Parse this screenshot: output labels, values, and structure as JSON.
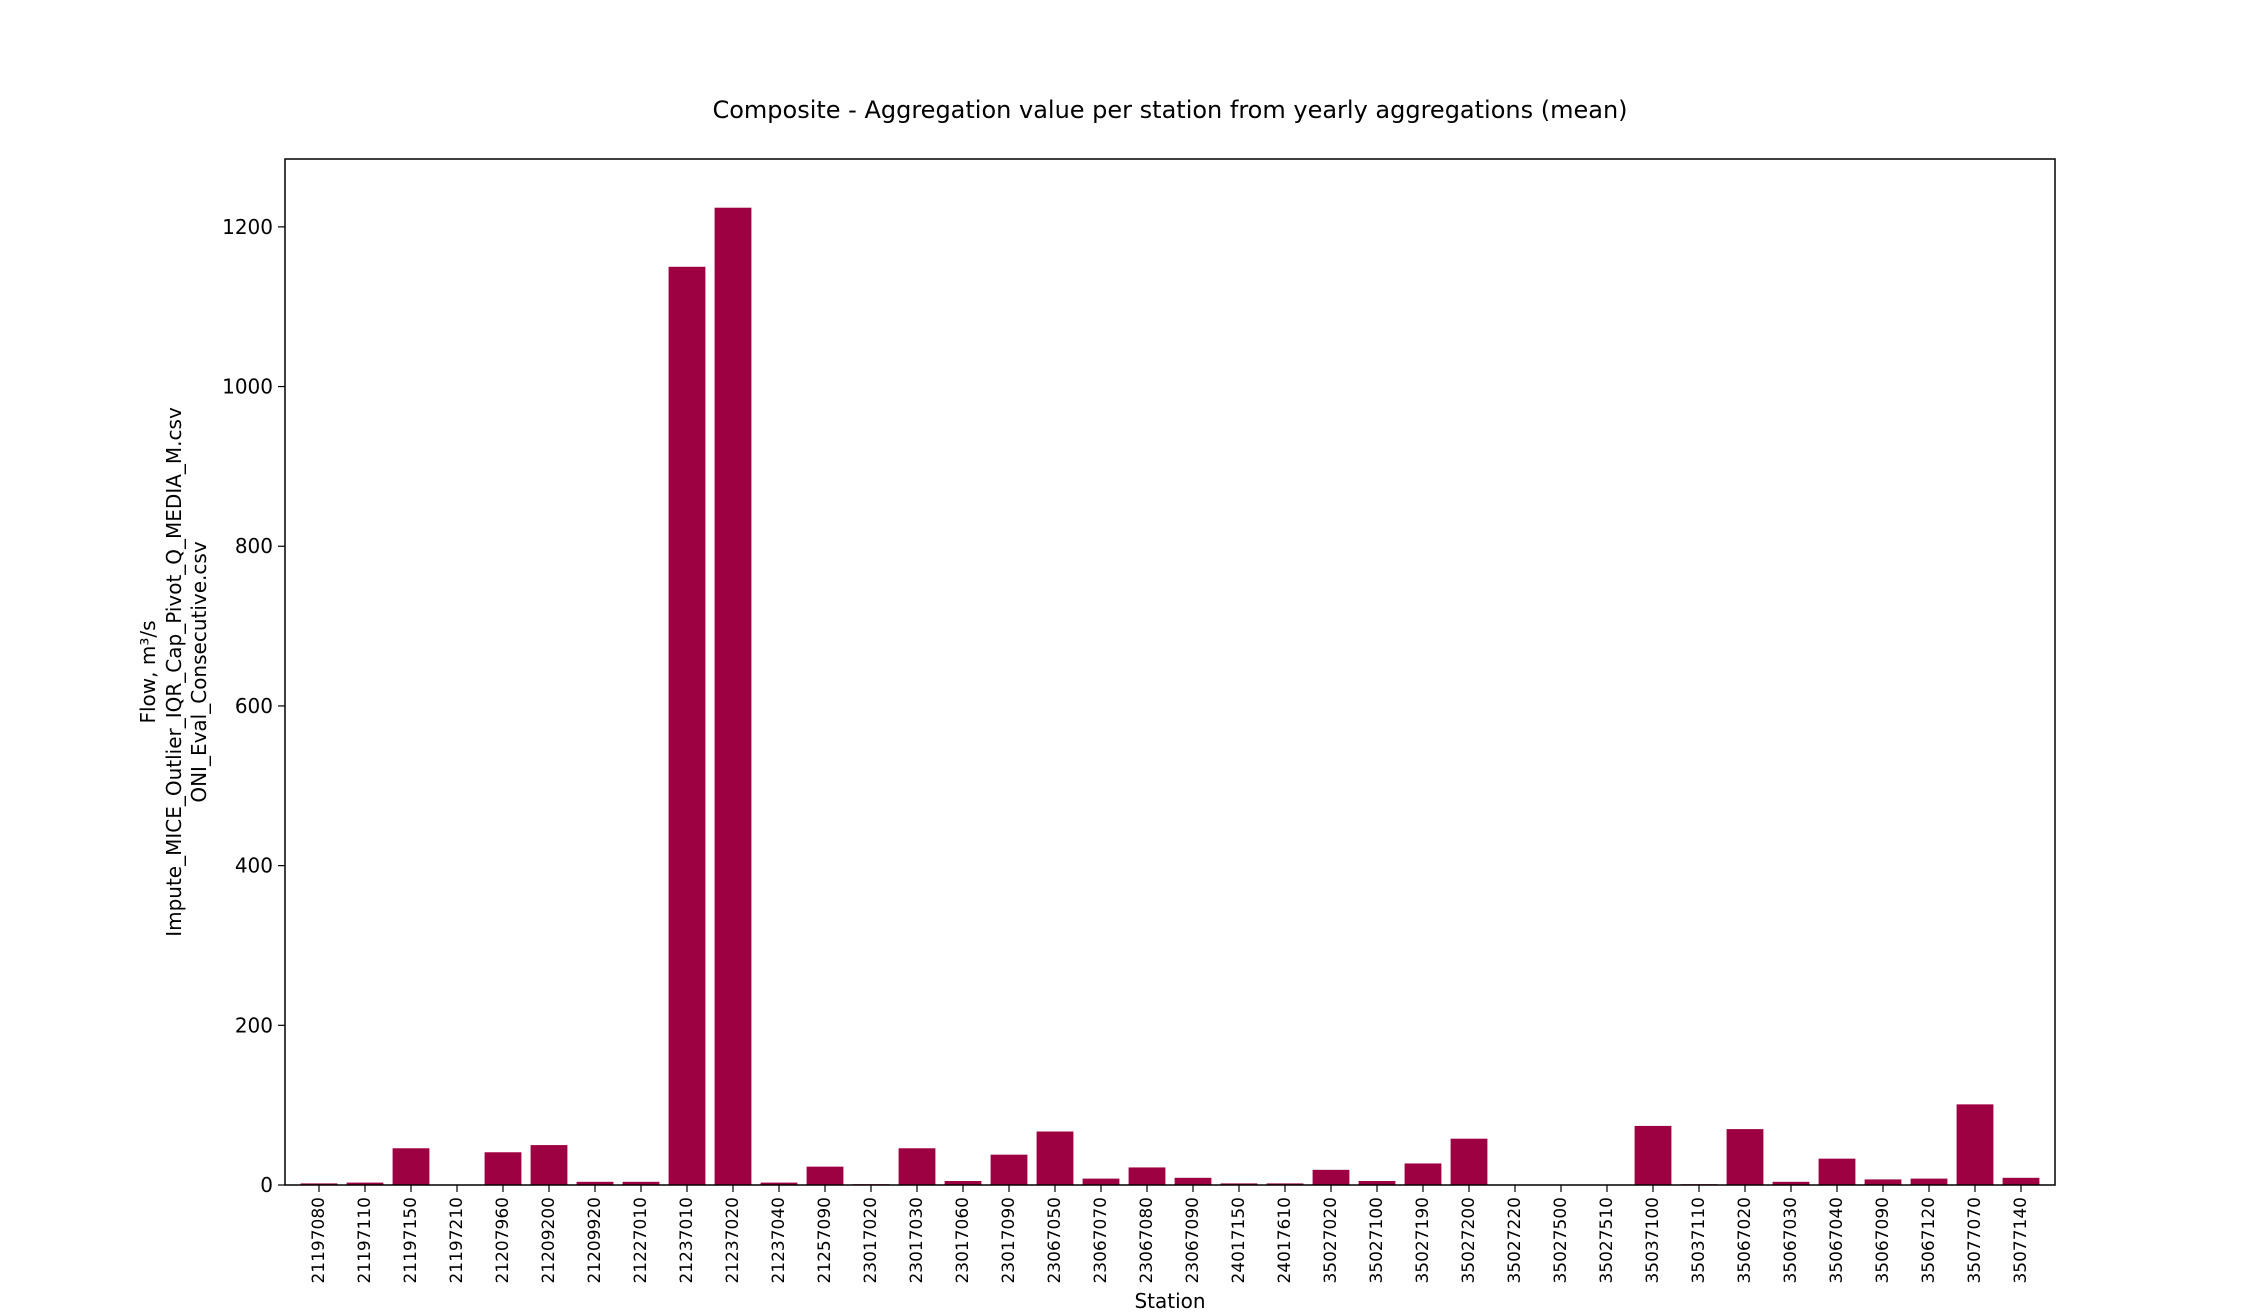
{
  "chart_data": {
    "type": "bar",
    "title": "Composite - Aggregation value per station from yearly aggregations (mean)",
    "xlabel": "Station",
    "ylabel_lines": [
      "Flow, m³/s",
      "Impute_MICE_Outlier_IQR_Cap_Pivot_Q_MEDIA_M.csv",
      "ONI_Eval_Consecutive.csv"
    ],
    "ylim": [
      0,
      1285
    ],
    "yticks": [
      0,
      200,
      400,
      600,
      800,
      1000,
      1200
    ],
    "bar_color": "#9e0142",
    "grid": false,
    "categories": [
      "21197080",
      "21197110",
      "21197150",
      "21197210",
      "21207960",
      "21209200",
      "21209920",
      "21227010",
      "21237010",
      "21237020",
      "21237040",
      "21257090",
      "23017020",
      "23017030",
      "23017060",
      "23017090",
      "23067050",
      "23067070",
      "23067080",
      "23067090",
      "24017150",
      "24017610",
      "35027020",
      "35027100",
      "35027190",
      "35027200",
      "35027220",
      "35027500",
      "35027510",
      "35037100",
      "35037110",
      "35067020",
      "35067030",
      "35067040",
      "35067090",
      "35067120",
      "35077070",
      "35077140"
    ],
    "values": [
      2,
      3,
      46,
      0,
      41,
      50,
      4,
      4,
      1150,
      1224,
      3,
      23,
      1,
      46,
      5,
      38,
      67,
      8,
      22,
      9,
      2,
      2,
      19,
      5,
      27,
      58,
      0,
      0,
      0,
      74,
      1,
      70,
      4,
      33,
      7,
      8,
      101,
      9
    ]
  }
}
